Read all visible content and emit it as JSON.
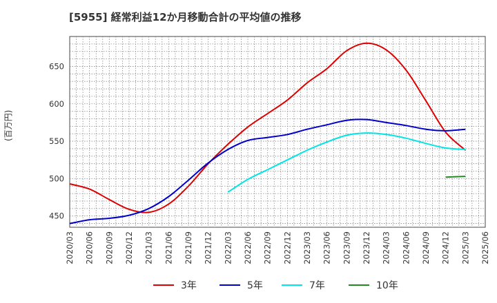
{
  "chart_data": {
    "type": "line",
    "title": "[5955]  経常利益12か月移動合計の平均値の推移",
    "ylabel": "(百万円)",
    "xlabel": "",
    "ylim": [
      435,
      690
    ],
    "yticks": [
      450,
      500,
      550,
      600,
      650
    ],
    "xticks": [
      "2020/03",
      "2020/06",
      "2020/09",
      "2020/12",
      "2021/03",
      "2021/06",
      "2021/09",
      "2021/12",
      "2022/03",
      "2022/06",
      "2022/09",
      "2022/12",
      "2023/03",
      "2023/06",
      "2023/09",
      "2023/12",
      "2024/03",
      "2024/06",
      "2024/09",
      "2024/12",
      "2025/03",
      "2025/06"
    ],
    "grid": true,
    "legend_position": "bottom",
    "x": [
      "2020/03",
      "2020/06",
      "2020/09",
      "2020/12",
      "2021/03",
      "2021/06",
      "2021/09",
      "2021/12",
      "2022/03",
      "2022/06",
      "2022/09",
      "2022/12",
      "2023/03",
      "2023/06",
      "2023/09",
      "2023/12",
      "2024/03",
      "2024/06",
      "2024/09",
      "2024/12",
      "2025/03"
    ],
    "series": [
      {
        "name": "3年",
        "color": "#dd0000",
        "values": [
          493,
          486,
          472,
          459,
          455,
          466,
          490,
          520,
          546,
          569,
          587,
          605,
          628,
          647,
          671,
          681,
          672,
          645,
          604,
          562,
          538
        ]
      },
      {
        "name": "5年",
        "color": "#0000cc",
        "values": [
          440,
          445,
          447,
          451,
          460,
          476,
          498,
          521,
          539,
          551,
          555,
          559,
          566,
          572,
          578,
          579,
          575,
          571,
          566,
          564,
          566
        ]
      },
      {
        "name": "7年",
        "color": "#00e5e5",
        "values": [
          null,
          null,
          null,
          null,
          null,
          null,
          null,
          null,
          482,
          499,
          512,
          525,
          538,
          549,
          558,
          561,
          559,
          554,
          547,
          541,
          539
        ]
      },
      {
        "name": "10年",
        "color": "#228822",
        "values": [
          null,
          null,
          null,
          null,
          null,
          null,
          null,
          null,
          null,
          null,
          null,
          null,
          null,
          null,
          null,
          null,
          null,
          null,
          null,
          502,
          503
        ]
      }
    ]
  }
}
